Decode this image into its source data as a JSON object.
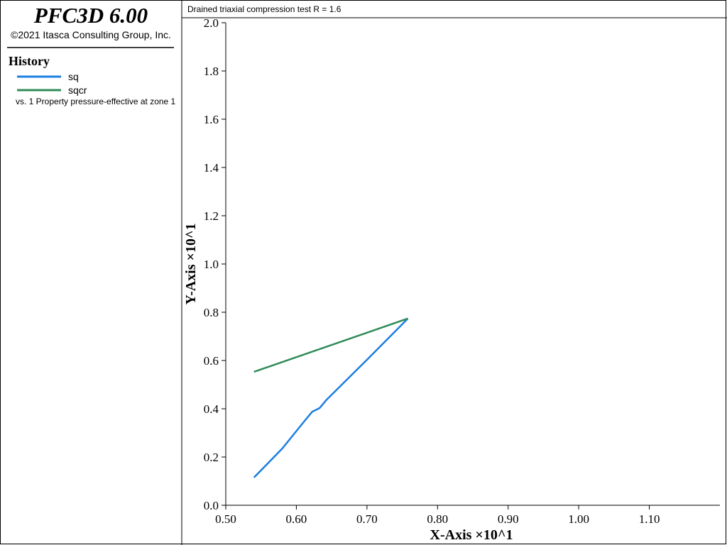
{
  "header": {
    "title": "PFC3D 6.00",
    "copyright": "©2021 Itasca Consulting Group, Inc.",
    "history_label": "History",
    "vs_label": "vs. 1 Property pressure-effective at zone 1"
  },
  "chart_data": {
    "type": "line",
    "title": "Drained triaxial compression test R = 1.6",
    "x_label": "X-Axis ×10^1",
    "y_label": "Y-Axis ×10^1",
    "series": [
      {
        "name": "sq",
        "color": "#1a7fe0",
        "x": [
          0.54,
          0.58,
          0.6126,
          0.6226,
          0.633,
          0.643,
          0.7,
          0.758
        ],
        "values": [
          0.115,
          0.235,
          0.353,
          0.388,
          0.403,
          0.438,
          0.603,
          0.774
        ]
      },
      {
        "name": "sqcr",
        "color": "#2e8b57",
        "x": [
          0.54,
          0.758
        ],
        "values": [
          0.553,
          0.774
        ]
      }
    ],
    "xlim": [
      0.5,
      1.2
    ],
    "xticks": [
      {
        "value": 0.5,
        "label": "0.50"
      },
      {
        "value": 0.6,
        "label": "0.60"
      },
      {
        "value": 0.7,
        "label": "0.70"
      },
      {
        "value": 0.8,
        "label": "0.80"
      },
      {
        "value": 0.9,
        "label": "0.90"
      },
      {
        "value": 1.0,
        "label": "1.00"
      },
      {
        "value": 1.1,
        "label": "1.10"
      }
    ],
    "ylim": [
      0,
      2.0
    ],
    "yticks": [
      {
        "value": 0,
        "label": "0.0"
      },
      {
        "value": 0.2,
        "label": "0.2"
      },
      {
        "value": 0.4,
        "label": "0.4"
      },
      {
        "value": 0.6,
        "label": "0.6"
      },
      {
        "value": 0.8,
        "label": "0.8"
      },
      {
        "value": 1.0,
        "label": "1.0"
      },
      {
        "value": 1.2,
        "label": "1.2"
      },
      {
        "value": 1.4,
        "label": "1.4"
      },
      {
        "value": 1.6,
        "label": "1.6"
      },
      {
        "value": 1.8,
        "label": "1.8"
      },
      {
        "value": 2.0,
        "label": "2.0"
      }
    ]
  }
}
